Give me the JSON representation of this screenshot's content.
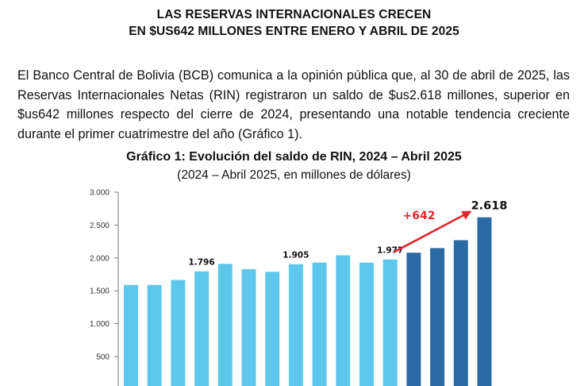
{
  "headline": {
    "line1": "LAS RESERVAS INTERNACIONALES CRECEN",
    "line2": "EN $US642 MILLONES ENTRE ENERO Y ABRIL DE 2025"
  },
  "body_text": "El Banco Central de Bolivia (BCB) comunica a la opinión pública que, al 30 de abril de 2025, las Reservas Internacionales Netas (RIN) registraron un saldo de $us2.618 millones, superior en $us642 millones respecto del cierre de 2024, presentando una notable tendencia creciente durante el primer cuatrimestre del año (Gráfico 1).",
  "chart_data": {
    "type": "bar",
    "title": "Gráfico 1: Evolución del saldo de RIN, 2024 – Abril 2025",
    "subtitle": "(2024 – Abril 2025, en millones de dólares)",
    "y_ticks": [
      "3.000",
      "2.500",
      "2.000",
      "1.500",
      "1.000",
      "500"
    ],
    "y_tick_values": [
      3000,
      2500,
      2000,
      1500,
      1000,
      500
    ],
    "ylim": [
      0,
      3000
    ],
    "values": [
      1590,
      1590,
      1665,
      1796,
      1910,
      1830,
      1790,
      1905,
      1930,
      2040,
      1930,
      1977,
      2080,
      2150,
      2270,
      2618
    ],
    "data_labels": [
      {
        "index": 3,
        "text": "1.796"
      },
      {
        "index": 7,
        "text": "1.905"
      },
      {
        "index": 11,
        "text": "1.977"
      },
      {
        "index": 15,
        "text": "2.618"
      }
    ],
    "series_colors": {
      "2024": "#5ec8ec",
      "2025": "#2a6aa5"
    },
    "annotation": {
      "text": "+642",
      "color": "#e0262c"
    },
    "grid": false,
    "legend": "none"
  }
}
